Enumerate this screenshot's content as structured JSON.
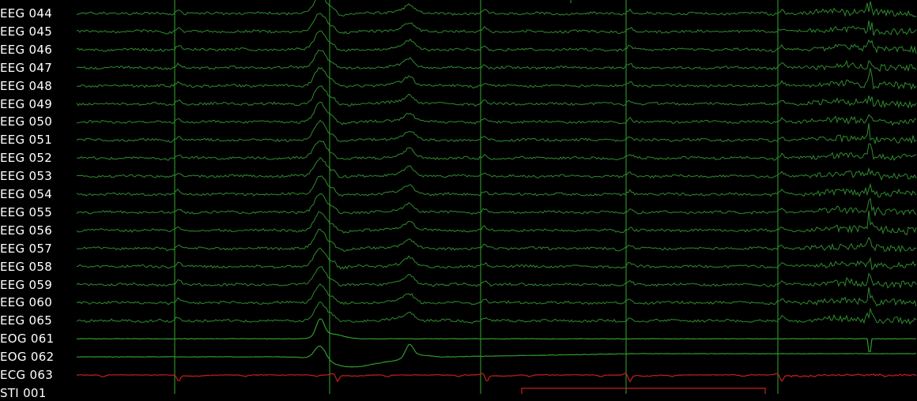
{
  "viewer": {
    "channels": [
      {
        "name": "EEG 044",
        "type": "eeg"
      },
      {
        "name": "EEG 045",
        "type": "eeg"
      },
      {
        "name": "EEG 046",
        "type": "eeg"
      },
      {
        "name": "EEG 047",
        "type": "eeg"
      },
      {
        "name": "EEG 048",
        "type": "eeg"
      },
      {
        "name": "EEG 049",
        "type": "eeg"
      },
      {
        "name": "EEG 050",
        "type": "eeg"
      },
      {
        "name": "EEG 051",
        "type": "eeg"
      },
      {
        "name": "EEG 052",
        "type": "eeg"
      },
      {
        "name": "EEG 053",
        "type": "eeg"
      },
      {
        "name": "EEG 054",
        "type": "eeg"
      },
      {
        "name": "EEG 055",
        "type": "eeg"
      },
      {
        "name": "EEG 056",
        "type": "eeg"
      },
      {
        "name": "EEG 057",
        "type": "eeg"
      },
      {
        "name": "EEG 058",
        "type": "eeg"
      },
      {
        "name": "EEG 059",
        "type": "eeg"
      },
      {
        "name": "EEG 060",
        "type": "eeg"
      },
      {
        "name": "EEG 065",
        "type": "eeg"
      },
      {
        "name": "EOG 061",
        "type": "eog"
      },
      {
        "name": "EOG 062",
        "type": "eog"
      },
      {
        "name": "ECG 063",
        "type": "ecg"
      },
      {
        "name": "STI 001",
        "type": "stim"
      }
    ],
    "colors": {
      "background": "#000000",
      "label": "#ffffff",
      "eeg": "#2e8b2e",
      "eog": "#2e9a2e",
      "ecg": "#c81e1e",
      "stim": "#c81e1e",
      "event_line": "#2faa2f"
    },
    "event_count": 6,
    "stim_events": 1
  }
}
